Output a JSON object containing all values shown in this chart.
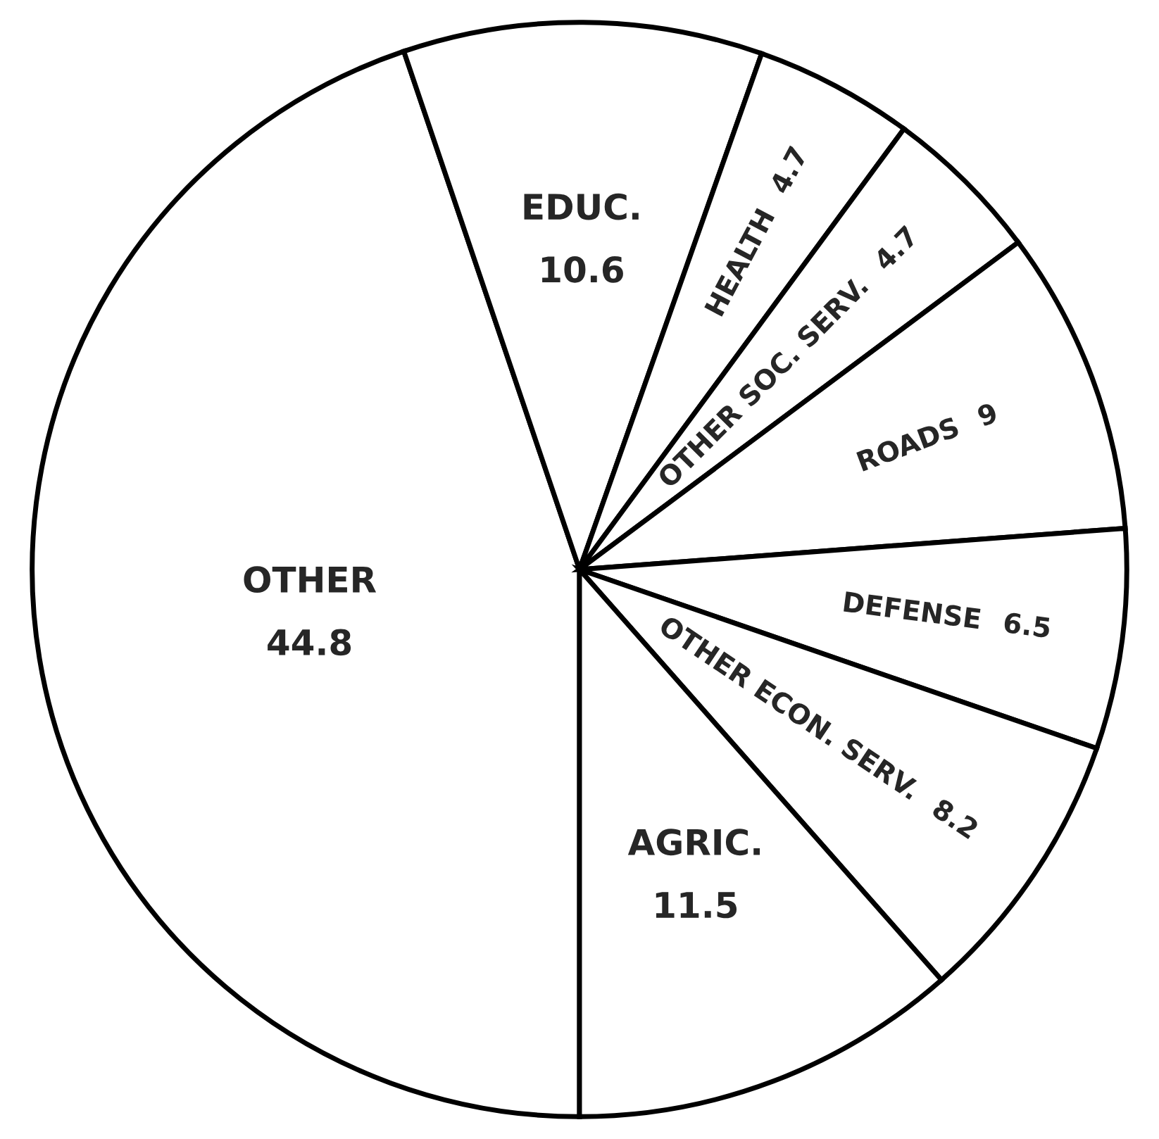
{
  "chart_data": {
    "type": "pie",
    "categories": [
      "OTHER",
      "EDUC.",
      "HEALTH",
      "OTHER SOC. SERV.",
      "ROADS",
      "DEFENSE",
      "OTHER ECON. SERV.",
      "AGRIC."
    ],
    "values": [
      44.8,
      10.6,
      4.7,
      4.7,
      9,
      6.5,
      8.2,
      11.5
    ],
    "colors": [
      "#ffffff",
      "#ffffff",
      "#ffffff",
      "#ffffff",
      "#ffffff",
      "#ffffff",
      "#ffffff",
      "#ffffff"
    ],
    "data_labels": true
  }
}
